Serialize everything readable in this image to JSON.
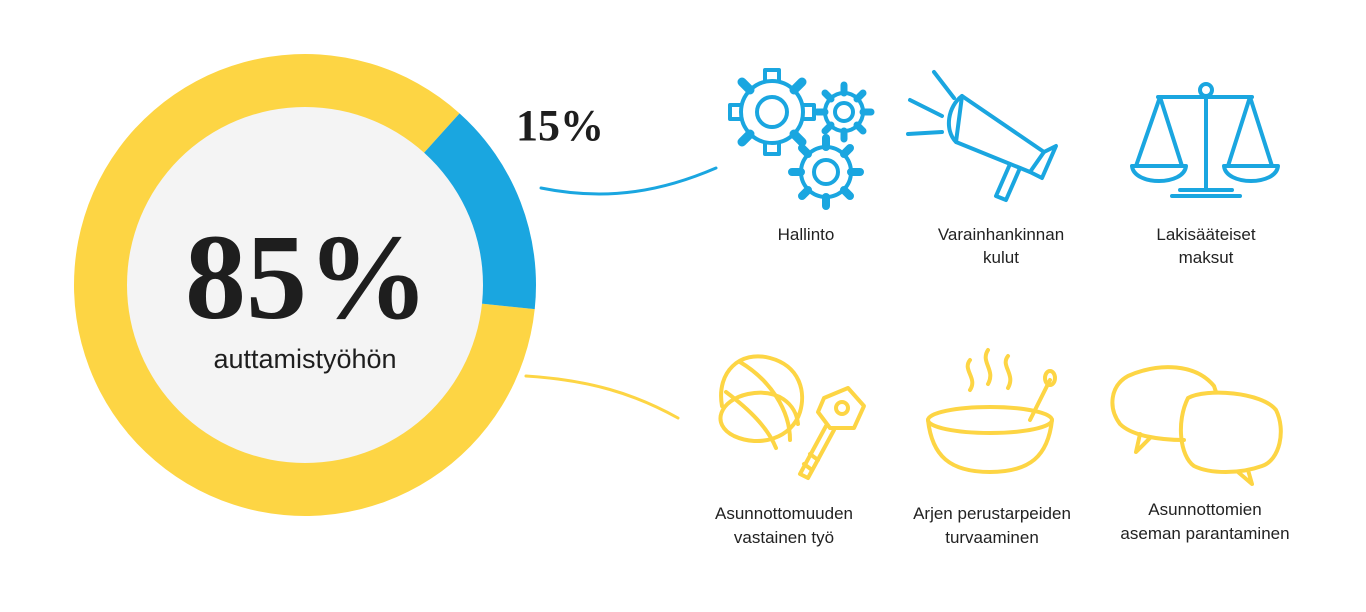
{
  "chart_data": {
    "type": "pie",
    "title": "",
    "slices": [
      {
        "label": "auttamistyöhön",
        "value": 85,
        "color": "#FDD544"
      },
      {
        "label": "",
        "value": 15,
        "color": "#1AA6E0"
      }
    ],
    "labels": {
      "main_percent": "85%",
      "main_caption": "auttamistyöhön",
      "minor_percent": "15%"
    }
  },
  "colors": {
    "yellow": "#FDD544",
    "blue": "#1AA6E0",
    "center_fill": "#F4F4F4",
    "text": "#1E1E1E"
  },
  "overhead_items": [
    {
      "icon": "gears-icon",
      "lines": [
        "Hallinto"
      ]
    },
    {
      "icon": "megaphone-icon",
      "lines": [
        "Varainhankinnan",
        "kulut"
      ]
    },
    {
      "icon": "scales-icon",
      "lines": [
        "Lakisääteiset",
        "maksut"
      ]
    }
  ],
  "aid_items": [
    {
      "icon": "house-key-icon",
      "lines": [
        "Asunnottomuuden",
        "vastainen työ"
      ]
    },
    {
      "icon": "soup-bowl-icon",
      "lines": [
        "Arjen perustarpeiden",
        "turvaaminen"
      ]
    },
    {
      "icon": "speech-bubbles-icon",
      "lines": [
        "Asunnottomien",
        "aseman parantaminen"
      ]
    }
  ]
}
